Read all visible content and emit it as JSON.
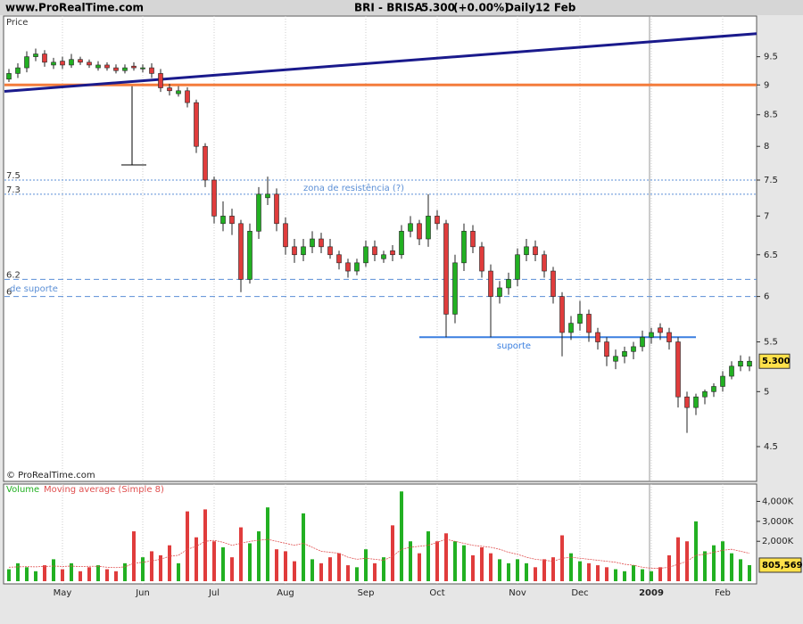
{
  "header": {
    "site": "www.ProRealTime.com",
    "symbol": "BRI - BRISA",
    "change": "(+0.00%)",
    "period": "Daily",
    "date": "12 Feb",
    "copyright": "© ProRealTime.com"
  },
  "chart_data": [
    {
      "type": "candlestick",
      "title": "Price",
      "log_scale": true,
      "grid": true,
      "up_color": "#22b022",
      "down_color": "#e03c3c",
      "categories": [
        null,
        null,
        null,
        null,
        null,
        null,
        "May",
        null,
        null,
        null,
        null,
        null,
        null,
        null,
        null,
        "Jun",
        null,
        null,
        null,
        null,
        null,
        null,
        null,
        "Jul",
        null,
        null,
        null,
        null,
        null,
        null,
        null,
        "Aug",
        null,
        null,
        null,
        null,
        null,
        null,
        null,
        null,
        "Sep",
        null,
        null,
        null,
        null,
        null,
        null,
        null,
        "Oct",
        null,
        null,
        null,
        null,
        null,
        null,
        null,
        null,
        "Nov",
        null,
        null,
        null,
        null,
        null,
        null,
        "Dec",
        null,
        null,
        null,
        null,
        null,
        null,
        null,
        "2009",
        null,
        null,
        null,
        null,
        null,
        null,
        null,
        "Feb",
        null,
        null,
        null
      ],
      "open": [
        9.1,
        9.2,
        9.3,
        9.5,
        9.55,
        9.35,
        9.42,
        9.35,
        9.45,
        9.4,
        9.3,
        9.35,
        9.3,
        9.25,
        9.33,
        9.28,
        9.3,
        9.2,
        8.95,
        8.85,
        8.9,
        8.7,
        8.0,
        7.5,
        6.9,
        7.0,
        6.9,
        6.2,
        6.8,
        7.25,
        7.3,
        6.9,
        6.6,
        6.5,
        6.6,
        6.7,
        6.6,
        6.5,
        6.4,
        6.3,
        6.4,
        6.6,
        6.45,
        6.55,
        6.5,
        6.8,
        6.9,
        6.7,
        7.0,
        6.9,
        5.8,
        6.4,
        6.8,
        6.6,
        6.3,
        6.0,
        6.1,
        6.2,
        6.5,
        6.6,
        6.5,
        6.3,
        6.0,
        5.6,
        5.7,
        5.8,
        5.6,
        5.5,
        5.3,
        5.35,
        5.4,
        5.45,
        5.55,
        5.65,
        5.6,
        5.5,
        4.95,
        4.85,
        4.95,
        5.0,
        5.05,
        5.15,
        5.25,
        5.25
      ],
      "high": [
        9.28,
        9.38,
        9.6,
        9.65,
        9.62,
        9.48,
        9.5,
        9.55,
        9.5,
        9.45,
        9.42,
        9.4,
        9.36,
        9.36,
        9.4,
        9.36,
        9.38,
        9.28,
        9.02,
        8.98,
        8.96,
        8.75,
        8.05,
        7.55,
        7.2,
        7.1,
        6.95,
        6.9,
        7.4,
        7.55,
        7.38,
        6.98,
        6.7,
        6.7,
        6.8,
        6.78,
        6.7,
        6.55,
        6.45,
        6.45,
        6.68,
        6.68,
        6.55,
        6.62,
        6.88,
        7.0,
        6.95,
        7.3,
        7.08,
        6.95,
        6.5,
        6.9,
        6.88,
        6.66,
        6.38,
        6.18,
        6.28,
        6.58,
        6.7,
        6.68,
        6.55,
        6.35,
        6.05,
        5.78,
        5.95,
        5.85,
        5.65,
        5.55,
        5.42,
        5.45,
        5.5,
        5.62,
        5.65,
        5.7,
        5.65,
        5.55,
        5.0,
        4.98,
        5.02,
        5.08,
        5.2,
        5.3,
        5.36,
        5.35
      ],
      "low": [
        9.05,
        9.12,
        9.22,
        9.42,
        9.32,
        9.28,
        9.28,
        9.3,
        9.35,
        9.3,
        9.25,
        9.25,
        9.2,
        9.2,
        9.25,
        9.22,
        9.12,
        8.88,
        8.82,
        8.8,
        8.62,
        7.9,
        7.4,
        6.9,
        6.8,
        6.75,
        6.05,
        6.15,
        6.7,
        7.15,
        6.8,
        6.5,
        6.4,
        6.42,
        6.52,
        6.52,
        6.45,
        6.32,
        6.22,
        6.25,
        6.35,
        6.42,
        6.4,
        6.42,
        6.45,
        6.72,
        6.62,
        6.6,
        6.82,
        5.55,
        5.7,
        6.3,
        6.52,
        6.22,
        5.55,
        5.92,
        6.02,
        6.12,
        6.42,
        6.42,
        6.22,
        5.92,
        5.35,
        5.52,
        5.62,
        5.5,
        5.42,
        5.25,
        5.22,
        5.28,
        5.32,
        5.4,
        5.48,
        5.52,
        5.42,
        4.85,
        4.62,
        4.78,
        4.88,
        4.95,
        5.0,
        5.12,
        5.2,
        5.2
      ],
      "close": [
        9.2,
        9.3,
        9.5,
        9.55,
        9.4,
        9.4,
        9.35,
        9.45,
        9.4,
        9.35,
        9.35,
        9.3,
        9.25,
        9.3,
        9.3,
        9.3,
        9.2,
        8.95,
        8.9,
        8.9,
        8.7,
        8.0,
        7.5,
        7.0,
        7.0,
        6.9,
        6.2,
        6.8,
        7.3,
        7.3,
        6.9,
        6.6,
        6.5,
        6.6,
        6.7,
        6.6,
        6.5,
        6.4,
        6.3,
        6.4,
        6.6,
        6.5,
        6.5,
        6.5,
        6.8,
        6.9,
        6.7,
        7.0,
        6.9,
        5.8,
        6.4,
        6.8,
        6.6,
        6.3,
        6.0,
        6.1,
        6.2,
        6.5,
        6.6,
        6.5,
        6.3,
        6.0,
        5.6,
        5.7,
        5.8,
        5.6,
        5.5,
        5.35,
        5.35,
        5.4,
        5.45,
        5.55,
        5.6,
        5.6,
        5.5,
        4.95,
        4.85,
        4.95,
        5.0,
        5.05,
        5.15,
        5.25,
        5.3,
        5.3
      ],
      "last_price": {
        "value": 5.3,
        "label": "5.300"
      },
      "ylim": [
        4.21,
        10.27
      ],
      "yticks": [
        9.5,
        9,
        8.5,
        8,
        7.5,
        7,
        6.5,
        6,
        5.5,
        5,
        4.5
      ],
      "trendline": {
        "values": [
          8.89,
          9.93
        ],
        "color": "#1a1a8c"
      },
      "hlines": [
        {
          "value": 9,
          "color": "#f47c3c",
          "style": "solid"
        },
        {
          "value": 7.5,
          "color": "#5b8fd6",
          "style": "dotted",
          "show_value": true
        },
        {
          "value": 7.3,
          "color": "#5b8fd6",
          "style": "dotted",
          "show_value": true
        },
        {
          "value": 6.2,
          "color": "#5b8fd6",
          "style": "dashed",
          "show_value": true
        },
        {
          "value": 6,
          "color": "#5b8fd6",
          "style": "dashed",
          "show_value": true
        }
      ],
      "annotations": [
        "zona de resistência (?)",
        "de suporte"
      ],
      "support_line": {
        "value": 5.55,
        "label": "suporte",
        "color": "#3a7fe0"
      }
    },
    {
      "type": "bar",
      "grid": true,
      "series": [
        {
          "name": "Volume",
          "color": "#22b022",
          "values": [
            600000,
            900000,
            700000,
            500000,
            800000,
            1100000,
            600000,
            900000,
            500000,
            700000,
            800000,
            600000,
            500000,
            900000,
            2500000,
            1200000,
            1500000,
            1300000,
            1800000,
            900000,
            3500000,
            2200000,
            3600000,
            2000000,
            1700000,
            1200000,
            2700000,
            1900000,
            2500000,
            3700000,
            1600000,
            1500000,
            1000000,
            3400000,
            1100000,
            900000,
            1200000,
            1400000,
            800000,
            700000,
            1600000,
            900000,
            1200000,
            2800000,
            4500000,
            2000000,
            1400000,
            2500000,
            2000000,
            2400000,
            2000000,
            1800000,
            1300000,
            1700000,
            1400000,
            1100000,
            900000,
            1100000,
            900000,
            700000,
            1100000,
            1200000,
            2300000,
            1400000,
            1000000,
            900000,
            800000,
            700000,
            600000,
            500000,
            800000,
            600000,
            500000,
            700000,
            1300000,
            2200000,
            2000000,
            3000000,
            1500000,
            1800000,
            2000000,
            1400000,
            1100000,
            805569
          ],
          "value_labels": [
            null,
            null,
            null,
            null,
            null,
            null,
            null,
            null,
            null,
            null,
            null,
            null,
            null,
            null,
            null,
            null,
            null,
            null,
            null,
            null,
            null,
            null,
            null,
            null,
            null,
            null,
            null,
            null,
            null,
            null,
            null,
            null,
            null,
            null,
            null,
            null,
            null,
            null,
            null,
            null,
            null,
            null,
            null,
            null,
            null,
            null,
            null,
            null,
            null,
            null,
            null,
            null,
            null,
            null,
            null,
            null,
            null,
            null,
            null,
            null,
            null,
            null,
            null,
            null,
            null,
            null,
            null,
            null,
            null,
            null,
            null,
            null,
            null,
            null,
            null,
            null,
            null,
            null,
            null,
            null,
            null,
            null,
            null,
            "805,569"
          ]
        },
        {
          "name": "Moving average (Simple 8)",
          "type": "line",
          "color": "#e05050",
          "values": [
            700000,
            720000,
            730000,
            720000,
            740000,
            760000,
            740000,
            760000,
            730000,
            750000,
            750000,
            700000,
            680000,
            720000,
            900000,
            950000,
            1020000,
            1100000,
            1250000,
            1300000,
            1600000,
            1750000,
            2000000,
            2050000,
            1950000,
            1800000,
            1900000,
            2000000,
            2050000,
            2100000,
            2000000,
            1900000,
            1800000,
            1900000,
            1700000,
            1500000,
            1450000,
            1400000,
            1200000,
            1100000,
            1150000,
            1100000,
            1050000,
            1250000,
            1600000,
            1700000,
            1750000,
            1800000,
            1950000,
            2100000,
            2000000,
            1900000,
            1800000,
            1750000,
            1700000,
            1600000,
            1450000,
            1350000,
            1200000,
            1100000,
            1050000,
            1000000,
            1150000,
            1200000,
            1150000,
            1100000,
            1050000,
            1000000,
            950000,
            850000,
            800000,
            700000,
            650000,
            650000,
            700000,
            850000,
            1000000,
            1300000,
            1350000,
            1450000,
            1550000,
            1600000,
            1500000,
            1400000
          ]
        }
      ],
      "ylim": [
        0,
        4870000
      ],
      "yticks": [
        {
          "value": 2000000,
          "label": "2,000K"
        },
        {
          "value": 3000000,
          "label": "3,000K"
        },
        {
          "value": 4000000,
          "label": "4,000K"
        }
      ]
    }
  ]
}
